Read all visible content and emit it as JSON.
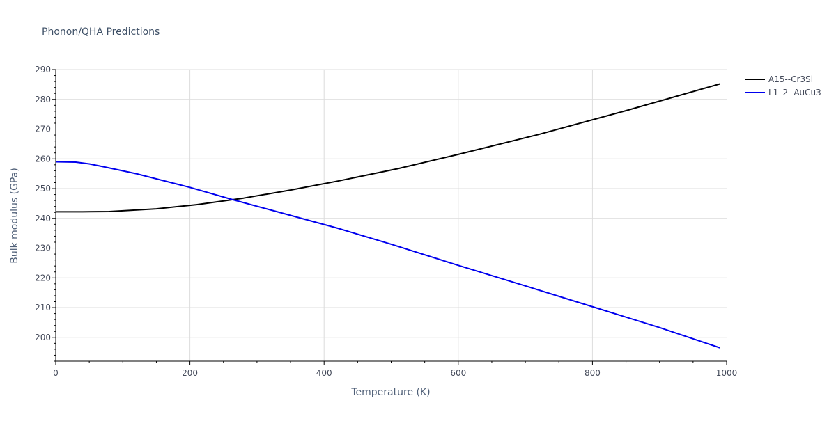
{
  "chart_data": {
    "type": "line",
    "title": "Phonon/QHA Predictions",
    "xlabel": "Temperature (K)",
    "ylabel": "Bulk modulus (GPa)",
    "xlim": [
      0,
      1000
    ],
    "ylim": [
      192,
      290
    ],
    "x_ticks": [
      "0",
      "200",
      "400",
      "600",
      "800",
      "1000"
    ],
    "y_ticks": [
      "200",
      "210",
      "220",
      "230",
      "240",
      "250",
      "260",
      "270",
      "280",
      "290"
    ],
    "grid": true,
    "legend_position": "top-right",
    "series": [
      {
        "name": "A15--Cr3Si",
        "color": "#000000",
        "x": [
          0,
          40,
          80,
          150,
          210,
          280,
          350,
          420,
          510,
          600,
          720,
          850,
          990
        ],
        "y": [
          242.2,
          242.2,
          242.3,
          243.2,
          244.6,
          246.8,
          249.5,
          252.5,
          256.7,
          261.5,
          268.2,
          276.2,
          285.2
        ]
      },
      {
        "name": "L1_2--AuCu3",
        "color": "#0000ee",
        "x": [
          0,
          30,
          50,
          70,
          120,
          200,
          265,
          350,
          420,
          500,
          600,
          700,
          800,
          900,
          990
        ],
        "y": [
          259.0,
          258.9,
          258.3,
          257.4,
          255.0,
          250.4,
          246.2,
          241.0,
          236.7,
          231.3,
          224.2,
          217.3,
          210.3,
          203.3,
          196.5
        ]
      }
    ]
  }
}
